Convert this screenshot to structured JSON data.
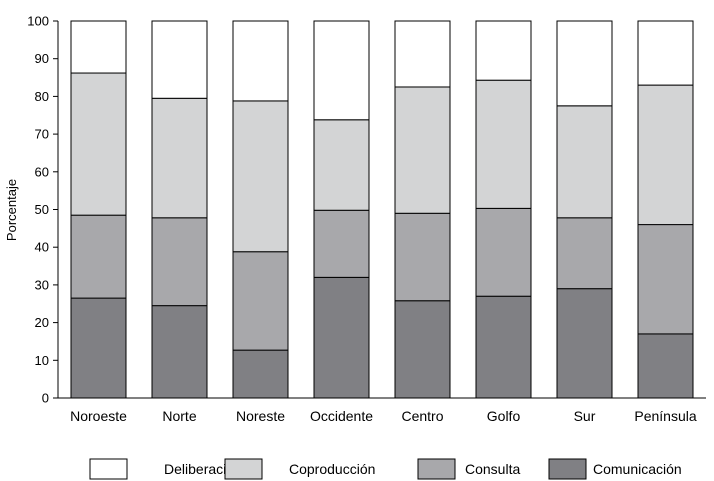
{
  "chart_data": {
    "type": "bar",
    "stacked": true,
    "title": "",
    "xlabel": "",
    "ylabel": "Porcentaje",
    "ylim": [
      0,
      100
    ],
    "yticks": [
      0,
      10,
      20,
      30,
      40,
      50,
      60,
      70,
      80,
      90,
      100
    ],
    "grid": false,
    "legend_position": "bottom",
    "categories": [
      "Noroeste",
      "Norte",
      "Noreste",
      "Occidente",
      "Centro",
      "Golfo",
      "Sur",
      "Península"
    ],
    "series": [
      {
        "name": "Comunicación",
        "color": "#808084",
        "values": [
          26.5,
          24.5,
          12.7,
          32.0,
          25.8,
          27.0,
          29.0,
          17.0
        ]
      },
      {
        "name": "Consulta",
        "color": "#a8a8ab",
        "values": [
          22.0,
          23.3,
          26.1,
          17.8,
          23.2,
          23.3,
          18.8,
          29.0
        ]
      },
      {
        "name": "Coproducción",
        "color": "#d3d4d5",
        "values": [
          37.7,
          31.7,
          40.0,
          24.0,
          33.5,
          34.0,
          29.7,
          37.0
        ]
      },
      {
        "name": "Deliberación",
        "color": "#ffffff",
        "values": [
          13.8,
          20.5,
          21.2,
          26.2,
          17.5,
          15.7,
          22.5,
          17.0
        ]
      }
    ],
    "legend_order": [
      "Deliberación",
      "Coproducción",
      "Consulta",
      "Comunicación"
    ]
  }
}
